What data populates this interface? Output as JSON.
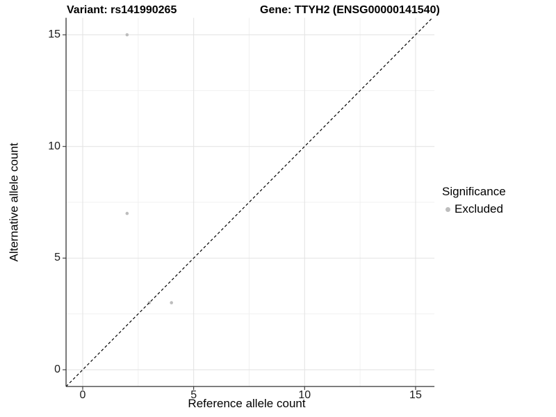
{
  "chart_data": {
    "type": "scatter",
    "title_variant": "Variant: rs141990265",
    "title_gene": "Gene: TTYH2 (ENSG00000141540)",
    "xlabel": "Reference allele count",
    "ylabel": "Alternative allele count",
    "xlim": [
      -0.75,
      15.85
    ],
    "ylim": [
      -0.75,
      15.76
    ],
    "x_ticks": [
      0,
      5,
      10,
      15
    ],
    "y_ticks": [
      0,
      5,
      10,
      15
    ],
    "x_minor_ticks": [
      2.5,
      7.5,
      12.5
    ],
    "y_minor_ticks": [
      2.5,
      7.5,
      12.5
    ],
    "grid": "major+minor",
    "reference_line": {
      "kind": "identity",
      "equation": "y = x",
      "style": "dashed",
      "color": "#000000"
    },
    "series": [
      {
        "name": "Excluded",
        "color": "#bdbdbd",
        "points": [
          {
            "x": 2,
            "y": 15
          },
          {
            "x": 2,
            "y": 7
          },
          {
            "x": 3,
            "y": 3
          },
          {
            "x": 4,
            "y": 3
          }
        ]
      }
    ],
    "legend": {
      "title": "Significance",
      "position": "right",
      "items": [
        {
          "label": "Excluded",
          "color": "#bdbdbd",
          "marker": "circle"
        }
      ]
    }
  }
}
